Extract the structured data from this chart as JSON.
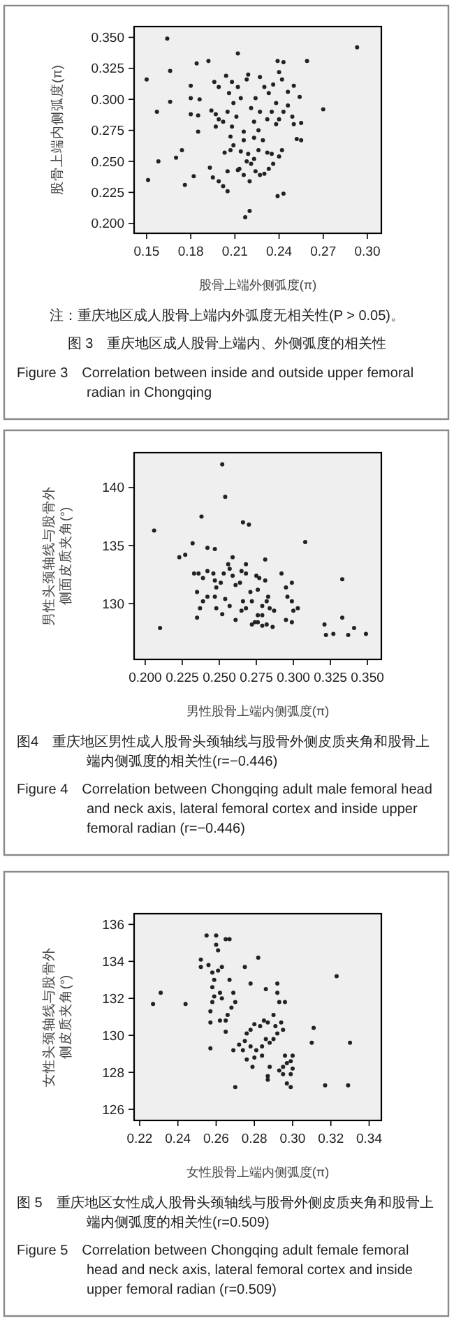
{
  "chart_data": [
    {
      "type": "scatter",
      "ylabel": "股骨上端内侧弧度(π)",
      "xlabel": "股骨上端外侧弧度(π)",
      "annotations": [
        "注：重庆地区成人股骨上端内外弧度无相关性(P > 0.05)。"
      ],
      "title": "图 3　重庆地区成人股骨上端内、外侧弧度的相关性",
      "subtitle": "Figure 3　Correlation between inside and outside upper femoral radian in Chongqing",
      "xlim": [
        0.1415,
        0.3095
      ],
      "ylim": [
        0.192,
        0.3587
      ],
      "xticks": [
        {
          "value": 0.15,
          "label": "0.15"
        },
        {
          "value": 0.18,
          "label": "0.18"
        },
        {
          "value": 0.21,
          "label": "0.21"
        },
        {
          "value": 0.24,
          "label": "0.24"
        },
        {
          "value": 0.27,
          "label": "0.27"
        },
        {
          "value": 0.3,
          "label": "0.30"
        }
      ],
      "yticks": [
        {
          "value": 0.2,
          "label": "0.200"
        },
        {
          "value": 0.225,
          "label": "0.225"
        },
        {
          "value": 0.25,
          "label": "0.250"
        },
        {
          "value": 0.275,
          "label": "0.275"
        },
        {
          "value": 0.3,
          "label": "0.300"
        },
        {
          "value": 0.325,
          "label": "0.325"
        },
        {
          "value": 0.35,
          "label": "0.350"
        }
      ],
      "marker": "circle",
      "series": [
        {
          "color": "#222222",
          "x": [
            0.164,
            0.15,
            0.166,
            0.166,
            0.157,
            0.158,
            0.151,
            0.17,
            0.174,
            0.176,
            0.182,
            0.18,
            0.18,
            0.18,
            0.184,
            0.186,
            0.185,
            0.185,
            0.192,
            0.193,
            0.195,
            0.199,
            0.202,
            0.205,
            0.205,
            0.203,
            0.207,
            0.212,
            0.212,
            0.217,
            0.22,
            0.22,
            0.239,
            0.243,
            0.243,
            0.239,
            0.259,
            0.293,
            0.27,
            0.255,
            0.25,
            0.249,
            0.252,
            0.255,
            0.254,
            0.25,
            0.246,
            0.242,
            0.24,
            0.196,
            0.199,
            0.204,
            0.208,
            0.194,
            0.197,
            0.199,
            0.197,
            0.202,
            0.205,
            0.206,
            0.208,
            0.209,
            0.211,
            0.212,
            0.214,
            0.216,
            0.216,
            0.218,
            0.219,
            0.221,
            0.223,
            0.219,
            0.218,
            0.221,
            0.224,
            0.227,
            0.23,
            0.233,
            0.236,
            0.226,
            0.229,
            0.232,
            0.235,
            0.227,
            0.23,
            0.233,
            0.236,
            0.238,
            0.235,
            0.232,
            0.227,
            0.224,
            0.24,
            0.243,
            0.246,
            0.242,
            0.24,
            0.238,
            0.223,
            0.214,
            0.213,
            0.216,
            0.223,
            0.226,
            0.207,
            0.209
          ],
          "values": [
            0.349,
            0.316,
            0.323,
            0.298,
            0.29,
            0.25,
            0.235,
            0.253,
            0.259,
            0.231,
            0.238,
            0.311,
            0.301,
            0.288,
            0.329,
            0.3,
            0.287,
            0.274,
            0.331,
            0.245,
            0.237,
            0.234,
            0.23,
            0.226,
            0.242,
            0.257,
            0.259,
            0.243,
            0.337,
            0.205,
            0.21,
            0.234,
            0.222,
            0.224,
            0.33,
            0.331,
            0.331,
            0.342,
            0.292,
            0.281,
            0.28,
            0.286,
            0.268,
            0.267,
            0.302,
            0.311,
            0.306,
            0.316,
            0.322,
            0.314,
            0.31,
            0.319,
            0.314,
            0.291,
            0.288,
            0.284,
            0.278,
            0.282,
            0.29,
            0.305,
            0.278,
            0.297,
            0.286,
            0.31,
            0.301,
            0.274,
            0.267,
            0.316,
            0.32,
            0.293,
            0.282,
            0.256,
            0.25,
            0.248,
            0.242,
            0.239,
            0.24,
            0.244,
            0.248,
            0.259,
            0.267,
            0.257,
            0.256,
            0.318,
            0.31,
            0.305,
            0.312,
            0.297,
            0.29,
            0.284,
            0.29,
            0.301,
            0.284,
            0.29,
            0.295,
            0.259,
            0.254,
            0.28,
            0.269,
            0.258,
            0.244,
            0.239,
            0.252,
            0.275,
            0.27,
            0.263
          ]
        }
      ]
    },
    {
      "type": "scatter",
      "ylabel": "男性头颈轴线与股骨外侧面皮质夹角(°)",
      "xlabel": "男性股骨上端内侧弧度(π)",
      "title": "图4　重庆地区男性成人股骨头颈轴线与股骨外侧皮质夹角和股骨上端内侧弧度的相关性(r=−0.446)",
      "subtitle": "Figure 4　Correlation between Chongqing adult male femoral head and neck axis, lateral femoral cortex and inside upper femoral radian (r=−0.446)",
      "xlim": [
        0.1925,
        0.3594
      ],
      "ylim": [
        125.2,
        143
      ],
      "xticks": [
        {
          "value": 0.2,
          "label": "0.200"
        },
        {
          "value": 0.225,
          "label": "0.225"
        },
        {
          "value": 0.25,
          "label": "0.250"
        },
        {
          "value": 0.275,
          "label": "0.275"
        },
        {
          "value": 0.3,
          "label": "0.300"
        },
        {
          "value": 0.325,
          "label": "0.325"
        },
        {
          "value": 0.35,
          "label": "0.350"
        }
      ],
      "yticks": [
        130,
        135,
        140
      ],
      "marker": "circle",
      "series": [
        {
          "color": "#222222",
          "x": [
            0.206,
            0.21,
            0.223,
            0.227,
            0.232,
            0.238,
            0.242,
            0.247,
            0.252,
            0.254,
            0.266,
            0.27,
            0.308,
            0.333,
            0.333,
            0.321,
            0.322,
            0.327,
            0.337,
            0.341,
            0.349,
            0.303,
            0.3,
            0.299,
            0.296,
            0.299,
            0.295,
            0.292,
            0.295,
            0.299,
            0.286,
            0.282,
            0.279,
            0.274,
            0.272,
            0.276,
            0.279,
            0.282,
            0.283,
            0.284,
            0.287,
            0.281,
            0.281,
            0.277,
            0.275,
            0.271,
            0.268,
            0.268,
            0.265,
            0.264,
            0.261,
            0.259,
            0.257,
            0.259,
            0.256,
            0.253,
            0.251,
            0.248,
            0.247,
            0.246,
            0.242,
            0.239,
            0.236,
            0.233,
            0.235,
            0.239,
            0.237,
            0.235,
            0.242,
            0.247,
            0.248,
            0.252,
            0.254,
            0.257,
            0.261,
            0.265,
            0.266,
            0.268,
            0.272,
            0.276,
            0.279,
            0.276
          ],
          "values": [
            136.3,
            127.9,
            134.0,
            134.2,
            135.2,
            137.5,
            134.8,
            134.7,
            142.0,
            139.2,
            137.0,
            136.8,
            135.3,
            132.1,
            128.8,
            128.2,
            127.3,
            127.4,
            127.3,
            127.9,
            127.4,
            129.6,
            129.4,
            130.2,
            130.6,
            131.8,
            131.4,
            132.6,
            128.6,
            128.4,
            128.0,
            128.2,
            128.1,
            128.4,
            128.2,
            129.0,
            129.8,
            130.2,
            130.6,
            129.6,
            129.4,
            133.8,
            132.0,
            132.2,
            132.4,
            131.0,
            132.6,
            133.4,
            132.8,
            131.8,
            131.6,
            132.4,
            133.0,
            134.0,
            133.4,
            132.6,
            131.8,
            131.4,
            132.0,
            132.6,
            132.8,
            132.2,
            132.6,
            132.6,
            131.0,
            130.2,
            129.6,
            128.8,
            130.6,
            130.6,
            129.6,
            129.1,
            130.4,
            129.8,
            128.6,
            129.4,
            130.2,
            129.6,
            130.2,
            131.2,
            129.0,
            128.4
          ]
        }
      ]
    },
    {
      "type": "scatter",
      "ylabel": "女性头颈轴线与股骨外侧皮质夹角(°)",
      "xlabel": "女性股骨上端内侧弧度(π)",
      "title": "图 5　重庆地区女性成人股骨头颈轴线与股骨外侧皮质夹角和股骨上端内侧弧度的相关性(r=0.509)",
      "subtitle": "Figure 5　Correlation between Chongqing adult female femoral head and neck axis, lateral femoral cortex and inside upper femoral radian (r=0.509)",
      "xlim": [
        0.2171,
        0.3464
      ],
      "ylim": [
        125.4,
        136.58
      ],
      "xticks": [
        {
          "value": 0.22,
          "label": "0.22"
        },
        {
          "value": 0.24,
          "label": "0.24"
        },
        {
          "value": 0.26,
          "label": "0.26"
        },
        {
          "value": 0.28,
          "label": "0.28"
        },
        {
          "value": 0.3,
          "label": "0.30"
        },
        {
          "value": 0.32,
          "label": "0.32"
        },
        {
          "value": 0.34,
          "label": "0.34"
        }
      ],
      "yticks": [
        126,
        128,
        130,
        132,
        134,
        136
      ],
      "marker": "circle",
      "series": [
        {
          "color": "#222222",
          "x": [
            0.227,
            0.231,
            0.244,
            0.255,
            0.252,
            0.252,
            0.256,
            0.258,
            0.259,
            0.258,
            0.259,
            0.258,
            0.257,
            0.257,
            0.257,
            0.26,
            0.26,
            0.261,
            0.265,
            0.267,
            0.261,
            0.263,
            0.262,
            0.263,
            0.266,
            0.267,
            0.265,
            0.265,
            0.268,
            0.269,
            0.27,
            0.262,
            0.269,
            0.27,
            0.275,
            0.278,
            0.282,
            0.286,
            0.292,
            0.292,
            0.293,
            0.296,
            0.29,
            0.291,
            0.294,
            0.295,
            0.292,
            0.29,
            0.288,
            0.286,
            0.287,
            0.285,
            0.283,
            0.28,
            0.278,
            0.276,
            0.275,
            0.278,
            0.281,
            0.284,
            0.284,
            0.28,
            0.274,
            0.272,
            0.276,
            0.279,
            0.288,
            0.287,
            0.287,
            0.293,
            0.295,
            0.296,
            0.297,
            0.299,
            0.3,
            0.3,
            0.299,
            0.297,
            0.299,
            0.31,
            0.311,
            0.317,
            0.323,
            0.329,
            0.33,
            0.295
          ],
          "values": [
            131.7,
            132.3,
            131.7,
            135.4,
            134.1,
            133.7,
            133.8,
            133.4,
            133.0,
            132.6,
            132.1,
            131.8,
            131.3,
            130.7,
            129.3,
            135.4,
            134.9,
            134.6,
            135.2,
            135.2,
            133.5,
            133.7,
            132.3,
            132.0,
            131.1,
            133.0,
            130.8,
            130.2,
            131.5,
            132.3,
            131.8,
            130.8,
            129.2,
            127.2,
            133.7,
            132.8,
            134.2,
            132.5,
            132.8,
            132.3,
            131.8,
            131.8,
            131.1,
            130.5,
            130.7,
            130.3,
            130.1,
            129.8,
            129.6,
            129.8,
            130.7,
            130.8,
            130.5,
            130.6,
            130.3,
            130.1,
            129.7,
            129.4,
            129.2,
            129.4,
            128.9,
            128.8,
            129.2,
            129.5,
            128.7,
            128.3,
            128.3,
            127.8,
            127.6,
            128.1,
            128.3,
            128.9,
            128.5,
            128.6,
            128.9,
            128.2,
            127.9,
            127.4,
            127.2,
            129.6,
            130.4,
            127.3,
            133.2,
            127.3,
            129.6,
            127.9
          ]
        }
      ]
    }
  ]
}
